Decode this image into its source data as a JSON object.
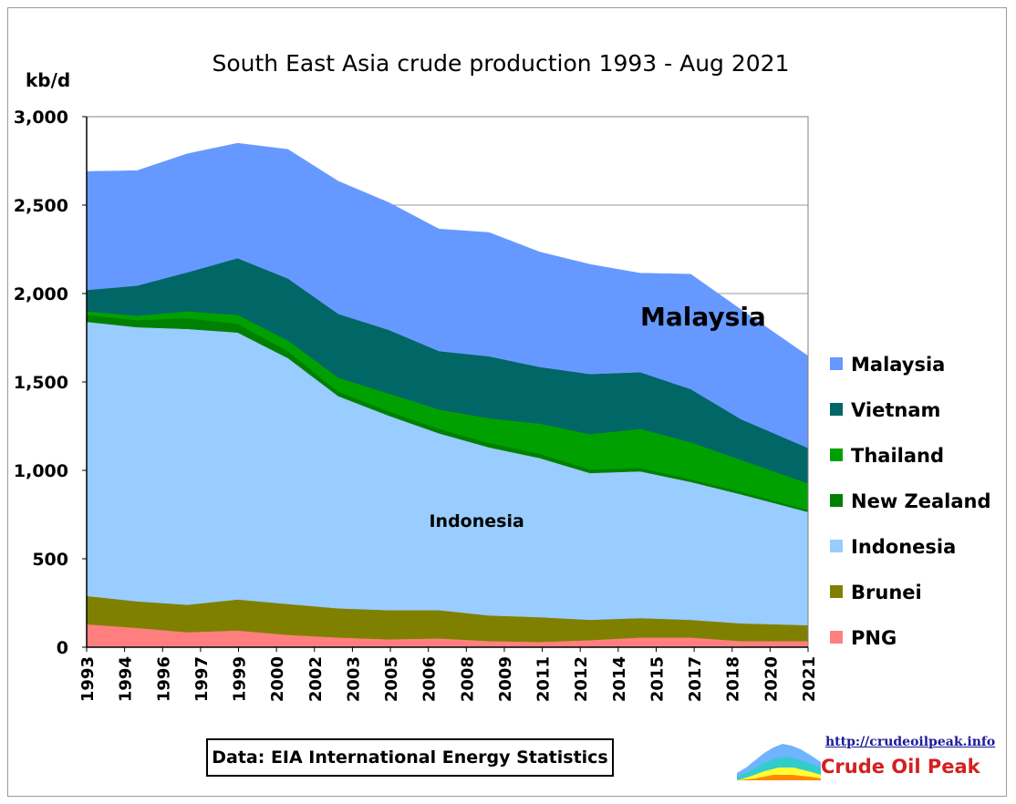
{
  "chart_data": {
    "type": "area",
    "stacked": true,
    "title": "South East Asia crude production 1993 - Aug 2021",
    "ylabel": "kb/d",
    "ylim": [
      0,
      3000
    ],
    "yticks": [
      0,
      500,
      1000,
      1500,
      2000,
      2500,
      3000
    ],
    "ytick_labels": [
      "0",
      "500",
      "1,000",
      "1,500",
      "2,000",
      "2,500",
      "3,000"
    ],
    "xlim": [
      1993,
      2021.67
    ],
    "xtick_labels": [
      "1993",
      "1994",
      "1996",
      "1997",
      "1999",
      "2000",
      "2002",
      "2003",
      "2005",
      "2006",
      "2008",
      "2009",
      "2011",
      "2012",
      "2014",
      "2015",
      "2017",
      "2018",
      "2020",
      "2021"
    ],
    "grid": "horizontal",
    "legend_position": "right",
    "series": [
      {
        "name": "PNG",
        "color": "#ff7f7f",
        "x": [
          1993,
          1995,
          1997,
          1999,
          2001,
          2003,
          2005,
          2007,
          2009,
          2011,
          2013,
          2015,
          2017,
          2019,
          2021.67
        ],
        "values": [
          130,
          110,
          85,
          95,
          70,
          55,
          45,
          50,
          35,
          30,
          40,
          55,
          55,
          35,
          35
        ]
      },
      {
        "name": "Brunei",
        "color": "#808000",
        "x": [
          1993,
          1995,
          1997,
          1999,
          2001,
          2003,
          2005,
          2007,
          2009,
          2011,
          2013,
          2015,
          2017,
          2019,
          2021.67
        ],
        "values": [
          160,
          150,
          155,
          175,
          175,
          165,
          165,
          160,
          145,
          140,
          115,
          110,
          100,
          100,
          90
        ]
      },
      {
        "name": "Indonesia",
        "color": "#99ccff",
        "x": [
          1993,
          1995,
          1997,
          1999,
          2001,
          2003,
          2005,
          2007,
          2009,
          2011,
          2013,
          2015,
          2017,
          2019,
          2021.67
        ],
        "values": [
          1550,
          1550,
          1560,
          1510,
          1390,
          1200,
          1100,
          1000,
          950,
          900,
          830,
          830,
          780,
          730,
          640
        ]
      },
      {
        "name": "New Zealand",
        "color": "#008000",
        "x": [
          1993,
          1995,
          1997,
          1999,
          2001,
          2003,
          2005,
          2007,
          2009,
          2011,
          2013,
          2015,
          2017,
          2019,
          2021.67
        ],
        "values": [
          40,
          40,
          60,
          50,
          40,
          25,
          25,
          25,
          25,
          25,
          20,
          20,
          15,
          15,
          12
        ]
      },
      {
        "name": "Thailand",
        "color": "#00a000",
        "x": [
          1993,
          1995,
          1997,
          1999,
          2001,
          2003,
          2005,
          2007,
          2009,
          2011,
          2013,
          2015,
          2017,
          2019,
          2021.67
        ],
        "values": [
          20,
          25,
          40,
          50,
          60,
          80,
          100,
          110,
          140,
          170,
          200,
          220,
          210,
          180,
          150
        ]
      },
      {
        "name": "Vietnam",
        "color": "#006666",
        "x": [
          1993,
          1995,
          1997,
          1999,
          2001,
          2003,
          2005,
          2007,
          2009,
          2011,
          2013,
          2015,
          2017,
          2019,
          2021.67
        ],
        "values": [
          120,
          170,
          220,
          320,
          350,
          360,
          360,
          330,
          350,
          320,
          340,
          320,
          300,
          230,
          200
        ]
      },
      {
        "name": "Malaysia",
        "color": "#6699ff",
        "x": [
          1993,
          1995,
          1997,
          1999,
          2001,
          2003,
          2005,
          2007,
          2009,
          2011,
          2013,
          2015,
          2017,
          2019,
          2021.67
        ],
        "values": [
          670,
          650,
          670,
          650,
          730,
          750,
          720,
          690,
          700,
          650,
          620,
          560,
          650,
          620,
          520
        ]
      }
    ],
    "legend_order": [
      "Malaysia",
      "Vietnam",
      "Thailand",
      "New Zealand",
      "Indonesia",
      "Brunei",
      "PNG"
    ],
    "annotations": [
      {
        "text": "Malaysia",
        "x": 2017.5,
        "y": 1820,
        "style": "big"
      },
      {
        "text": "Indonesia",
        "x": 2008.5,
        "y": 680,
        "style": "small"
      }
    ]
  },
  "source_note": "Data: EIA International Energy Statistics",
  "logo": {
    "url_text": "http://crudeoilpeak.info",
    "name": "Crude Oil Peak"
  }
}
